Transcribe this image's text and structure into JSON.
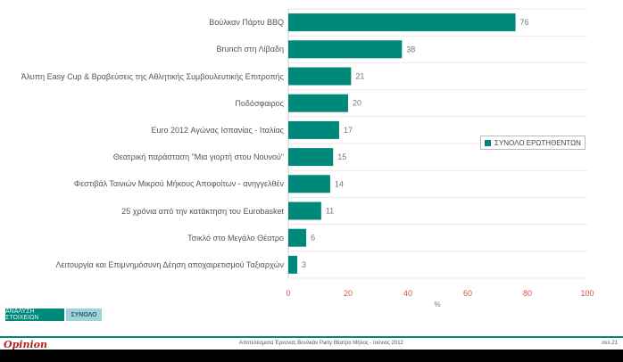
{
  "chart_data": {
    "type": "bar",
    "orientation": "horizontal",
    "categories": [
      "Βούλκαν Πάρτυ ΒΒQ",
      "Brunch στη Λίβαδη",
      "Άλυπη Easy Cup & Βραβεύσεις της Αθλητικής Συμβουλευτικής Επιτροπής",
      "Ποδόσφαιρος",
      "Euro 2012 Αγώνας Ισπανίας - Ιταλίας",
      "Θεατρική παράσταση \"Μια γιορτή στου Νουνού\"",
      "Φεστιβάλ Ταινιών Μικρού Μήκους Αποφοίτων - ανηγγελθέν",
      "25 χρόνια από την κατάκτηση του Eurobasket",
      "Τσικλό στο Μεγάλο Θέατρο",
      "Λειτουργία και Επιμνημόσυνη Δέηση αποχαιρετισμού Ταξιαρχών"
    ],
    "series": [
      {
        "name": "ΣΥΝΟΛΟ ΕΡΩΤΗΘΕΝΤΩΝ",
        "values": [
          76,
          38,
          21,
          20,
          17,
          15,
          14,
          11,
          6,
          3
        ]
      }
    ],
    "x_ticks": [
      "0",
      "20",
      "40",
      "60",
      "80",
      "100"
    ],
    "xlim": [
      0,
      100
    ],
    "xlabel": "%",
    "legend_position": "right",
    "bar_color": "#00897b",
    "grid": false
  },
  "tabs": {
    "active": "ΑΝΑΛΥΣΗ ΣΤΟΙΧΕΙΩΝ",
    "inactive": "ΣΥΝΟΛΟ"
  },
  "footer": {
    "logo": "Opinion",
    "text": "Αποτελέσματα Έρευνας Βουλκάν Party Θέατρο Μήλος - Ιούνιος 2012",
    "page": "σελ.21"
  }
}
